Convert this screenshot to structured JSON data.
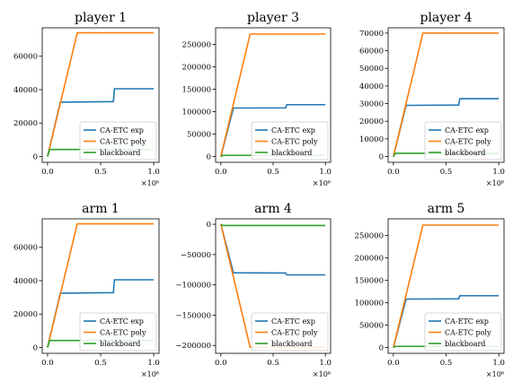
{
  "figure": {
    "x_multiplier": "×10⁶"
  },
  "colors": {
    "exp": "#1f77b4",
    "poly": "#ff7f0e",
    "blackboard": "#2ca02c"
  },
  "chart_data": [
    {
      "type": "line",
      "title": "player 1",
      "xlim": [
        -0.05,
        1.05
      ],
      "ylim": [
        -3500,
        77000
      ],
      "xticks": [
        0.0,
        0.5,
        1.0
      ],
      "xtick_labels": [
        "0.0",
        "0.5",
        "1.0"
      ],
      "yticks": [
        0,
        20000,
        40000,
        60000
      ],
      "ytick_labels": [
        "0",
        "20000",
        "40000",
        "60000"
      ],
      "legend": [
        "CA-ETC exp",
        "CA-ETC poly",
        "blackboard"
      ],
      "legend_loc": "lower-right",
      "series": [
        {
          "name": "CA-ETC exp",
          "color_key": "exp",
          "x": [
            0,
            0.12,
            0.62,
            0.63,
            1.0
          ],
          "y": [
            0,
            32500,
            32800,
            40500,
            40500
          ]
        },
        {
          "name": "CA-ETC poly",
          "color_key": "poly",
          "x": [
            0,
            0.28,
            1.0
          ],
          "y": [
            0,
            74000,
            74000
          ]
        },
        {
          "name": "blackboard",
          "color_key": "blackboard",
          "x": [
            0,
            0.02,
            1.0
          ],
          "y": [
            0,
            4200,
            4200
          ]
        }
      ]
    },
    {
      "type": "line",
      "title": "player 3",
      "xlim": [
        -0.05,
        1.05
      ],
      "ylim": [
        -13000,
        287000
      ],
      "xticks": [
        0.0,
        0.5,
        1.0
      ],
      "xtick_labels": [
        "0.0",
        "0.5",
        "1.0"
      ],
      "yticks": [
        0,
        50000,
        100000,
        150000,
        200000,
        250000
      ],
      "ytick_labels": [
        "0",
        "50000",
        "100000",
        "150000",
        "200000",
        "250000"
      ],
      "legend": [
        "CA-ETC exp",
        "CA-ETC poly",
        "blackboard"
      ],
      "legend_loc": "lower-right",
      "series": [
        {
          "name": "CA-ETC exp",
          "color_key": "exp",
          "x": [
            0,
            0.12,
            0.62,
            0.63,
            1.0
          ],
          "y": [
            0,
            108000,
            108500,
            115500,
            115500
          ]
        },
        {
          "name": "CA-ETC poly",
          "color_key": "poly",
          "x": [
            0,
            0.28,
            1.0
          ],
          "y": [
            0,
            273000,
            273000
          ]
        },
        {
          "name": "blackboard",
          "color_key": "blackboard",
          "x": [
            0,
            0.02,
            1.0
          ],
          "y": [
            0,
            2500,
            2500
          ]
        }
      ]
    },
    {
      "type": "line",
      "title": "player 4",
      "xlim": [
        -0.05,
        1.05
      ],
      "ylim": [
        -3300,
        73000
      ],
      "xticks": [
        0.0,
        0.5,
        1.0
      ],
      "xtick_labels": [
        "0.0",
        "0.5",
        "1.0"
      ],
      "yticks": [
        0,
        10000,
        20000,
        30000,
        40000,
        50000,
        60000,
        70000
      ],
      "ytick_labels": [
        "0",
        "10000",
        "20000",
        "30000",
        "40000",
        "50000",
        "60000",
        "70000"
      ],
      "legend": [
        "CA-ETC exp",
        "CA-ETC poly",
        "blackboard"
      ],
      "legend_loc": "lower-right",
      "series": [
        {
          "name": "CA-ETC exp",
          "color_key": "exp",
          "x": [
            0,
            0.12,
            0.62,
            0.63,
            1.0
          ],
          "y": [
            0,
            29000,
            29200,
            32800,
            32800
          ]
        },
        {
          "name": "CA-ETC poly",
          "color_key": "poly",
          "x": [
            0,
            0.28,
            1.0
          ],
          "y": [
            0,
            70000,
            70000
          ]
        },
        {
          "name": "blackboard",
          "color_key": "blackboard",
          "x": [
            0,
            0.02,
            1.0
          ],
          "y": [
            0,
            1800,
            1800
          ]
        }
      ]
    },
    {
      "type": "line",
      "title": "arm 1",
      "xlim": [
        -0.05,
        1.05
      ],
      "ylim": [
        -3500,
        77000
      ],
      "xticks": [
        0.0,
        0.5,
        1.0
      ],
      "xtick_labels": [
        "0.0",
        "0.5",
        "1.0"
      ],
      "yticks": [
        0,
        20000,
        40000,
        60000
      ],
      "ytick_labels": [
        "0",
        "20000",
        "40000",
        "60000"
      ],
      "legend": [
        "CA-ETC exp",
        "CA-ETC poly",
        "blackboard"
      ],
      "legend_loc": "lower-right",
      "series": [
        {
          "name": "CA-ETC exp",
          "color_key": "exp",
          "x": [
            0,
            0.12,
            0.62,
            0.63,
            1.0
          ],
          "y": [
            0,
            32500,
            32800,
            40500,
            40500
          ]
        },
        {
          "name": "CA-ETC poly",
          "color_key": "poly",
          "x": [
            0,
            0.28,
            1.0
          ],
          "y": [
            0,
            74000,
            74000
          ]
        },
        {
          "name": "blackboard",
          "color_key": "blackboard",
          "x": [
            0,
            0.02,
            1.0
          ],
          "y": [
            0,
            4200,
            4200
          ]
        }
      ]
    },
    {
      "type": "line",
      "title": "arm 4",
      "xlim": [
        -0.05,
        1.05
      ],
      "ylim": [
        -213000,
        9000
      ],
      "xticks": [
        0.0,
        0.5,
        1.0
      ],
      "xtick_labels": [
        "0.0",
        "0.5",
        "1.0"
      ],
      "yticks": [
        0,
        -50000,
        -100000,
        -150000,
        -200000
      ],
      "ytick_labels": [
        "0",
        "−50000",
        "−100000",
        "−150000",
        "−200000"
      ],
      "legend": [
        "CA-ETC exp",
        "CA-ETC poly",
        "blackboard"
      ],
      "legend_loc": "lower-right",
      "series": [
        {
          "name": "CA-ETC exp",
          "color_key": "exp",
          "x": [
            0,
            0.12,
            0.62,
            0.63,
            1.0
          ],
          "y": [
            0,
            -80000,
            -80500,
            -83500,
            -83500
          ]
        },
        {
          "name": "CA-ETC poly",
          "color_key": "poly",
          "x": [
            0,
            0.28,
            1.0
          ],
          "y": [
            0,
            -203000,
            -203000
          ]
        },
        {
          "name": "blackboard",
          "color_key": "blackboard",
          "x": [
            0,
            0.02,
            1.0
          ],
          "y": [
            0,
            -2000,
            -2000
          ]
        }
      ]
    },
    {
      "type": "line",
      "title": "arm 5",
      "xlim": [
        -0.05,
        1.05
      ],
      "ylim": [
        -13000,
        287000
      ],
      "xticks": [
        0.0,
        0.5,
        1.0
      ],
      "xtick_labels": [
        "0.0",
        "0.5",
        "1.0"
      ],
      "yticks": [
        0,
        50000,
        100000,
        150000,
        200000,
        250000
      ],
      "ytick_labels": [
        "0",
        "50000",
        "100000",
        "150000",
        "200000",
        "250000"
      ],
      "legend": [
        "CA-ETC exp",
        "CA-ETC poly",
        "blackboard"
      ],
      "legend_loc": "lower-right",
      "series": [
        {
          "name": "CA-ETC exp",
          "color_key": "exp",
          "x": [
            0,
            0.12,
            0.62,
            0.63,
            1.0
          ],
          "y": [
            0,
            108000,
            108500,
            115500,
            115500
          ]
        },
        {
          "name": "CA-ETC poly",
          "color_key": "poly",
          "x": [
            0,
            0.28,
            1.0
          ],
          "y": [
            0,
            273000,
            273000
          ]
        },
        {
          "name": "blackboard",
          "color_key": "blackboard",
          "x": [
            0,
            0.02,
            1.0
          ],
          "y": [
            0,
            2500,
            2500
          ]
        }
      ]
    }
  ]
}
